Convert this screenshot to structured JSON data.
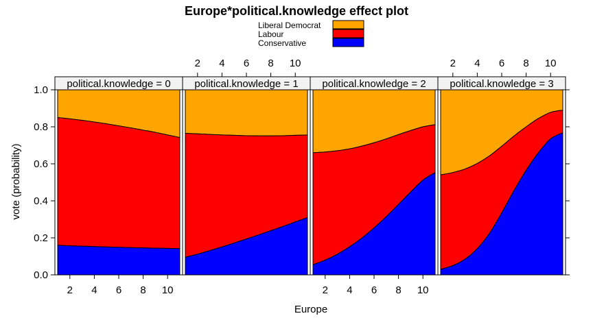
{
  "chart_data": {
    "type": "area",
    "title": "Europe*political.knowledge effect plot",
    "xlabel": "Europe",
    "ylabel": "vote (probability)",
    "xlim": [
      1,
      11
    ],
    "ylim": [
      0,
      1
    ],
    "x_ticks": [
      2,
      4,
      6,
      8,
      10
    ],
    "y_ticks": [
      "0.0",
      "0.2",
      "0.4",
      "0.6",
      "0.8",
      "1.0"
    ],
    "stacked": true,
    "legend": {
      "position": "top",
      "entries": [
        {
          "name": "Liberal Democrat",
          "color": "#FFA500"
        },
        {
          "name": "Labour",
          "color": "#FF0000"
        },
        {
          "name": "Conservative",
          "color": "#0000FF"
        }
      ]
    },
    "x": [
      1,
      2,
      3,
      4,
      5,
      6,
      7,
      8,
      9,
      10,
      11
    ],
    "panels": [
      {
        "strip": "political.knowledge = 0",
        "conservative_upper": [
          0.16,
          0.157,
          0.155,
          0.153,
          0.151,
          0.149,
          0.147,
          0.146,
          0.144,
          0.143,
          0.142
        ],
        "labour_upper": [
          0.85,
          0.843,
          0.835,
          0.826,
          0.816,
          0.805,
          0.794,
          0.782,
          0.77,
          0.756,
          0.742
        ]
      },
      {
        "strip": "political.knowledge = 1",
        "conservative_upper": [
          0.095,
          0.112,
          0.131,
          0.151,
          0.172,
          0.194,
          0.216,
          0.239,
          0.262,
          0.286,
          0.31
        ],
        "labour_upper": [
          0.765,
          0.762,
          0.759,
          0.756,
          0.754,
          0.752,
          0.751,
          0.751,
          0.752,
          0.754,
          0.756
        ]
      },
      {
        "strip": "political.knowledge = 2",
        "conservative_upper": [
          0.055,
          0.08,
          0.112,
          0.152,
          0.199,
          0.254,
          0.315,
          0.381,
          0.448,
          0.512,
          0.553
        ],
        "labour_upper": [
          0.66,
          0.664,
          0.671,
          0.681,
          0.696,
          0.714,
          0.735,
          0.758,
          0.78,
          0.8,
          0.812
        ]
      },
      {
        "strip": "political.knowledge = 3",
        "conservative_upper": [
          0.03,
          0.05,
          0.085,
          0.142,
          0.225,
          0.335,
          0.455,
          0.565,
          0.66,
          0.735,
          0.768
        ],
        "labour_upper": [
          0.54,
          0.553,
          0.572,
          0.602,
          0.643,
          0.695,
          0.75,
          0.8,
          0.845,
          0.878,
          0.89
        ]
      }
    ]
  }
}
